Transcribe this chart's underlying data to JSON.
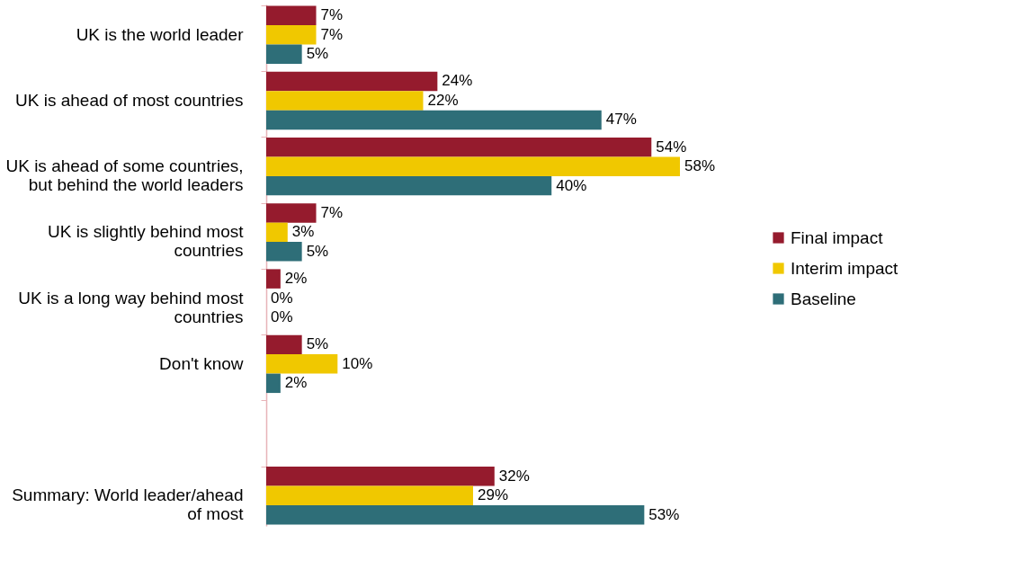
{
  "chart_data": {
    "type": "bar",
    "orientation": "horizontal",
    "categories": [
      "UK is the world leader",
      "UK is ahead of most countries",
      "UK is ahead of some countries,\nbut behind the world leaders",
      "UK is slightly behind most\ncountries",
      "UK is a long way behind most\ncountries",
      "Don't know",
      null,
      "Summary: World leader/ahead\nof most"
    ],
    "series": [
      {
        "name": "Final impact",
        "color": "#951b2d",
        "values": [
          7,
          24,
          54,
          7,
          2,
          5,
          null,
          32
        ],
        "value_labels": [
          "7%",
          "24%",
          "54%",
          "7%",
          "2%",
          "5%",
          null,
          "32%"
        ]
      },
      {
        "name": "Interim impact",
        "color": "#f0c800",
        "values": [
          7,
          22,
          58,
          3,
          0,
          10,
          null,
          29
        ],
        "value_labels": [
          "7%",
          "22%",
          "58%",
          "3%",
          "0%",
          "10%",
          null,
          "29%"
        ]
      },
      {
        "name": "Baseline",
        "color": "#2e6e78",
        "values": [
          5,
          47,
          40,
          5,
          0,
          2,
          null,
          53
        ],
        "value_labels": [
          "5%",
          "47%",
          "40%",
          "5%",
          "0%",
          "2%",
          null,
          "53%"
        ]
      }
    ],
    "tick_labels": "y",
    "legend": "right",
    "grid": false
  }
}
